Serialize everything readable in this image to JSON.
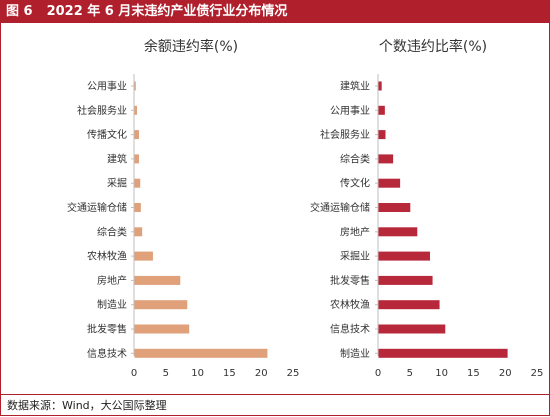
{
  "header": {
    "fig": "图 6",
    "title": "2022 年 6 月末违约产业债行业分布情况"
  },
  "footer": {
    "source": "数据来源：Wind，大公国际整理"
  },
  "chart_data": [
    {
      "type": "bar",
      "orientation": "horizontal",
      "title": "余额违约率(%)",
      "categories": [
        "公用事业",
        "社会服务业",
        "传播文化",
        "建筑",
        "采掘",
        "交通运输仓储",
        "综合类",
        "农林牧渔",
        "房地产",
        "制造业",
        "批发零售",
        "信息技术"
      ],
      "values": [
        0.2,
        0.4,
        0.7,
        0.7,
        0.9,
        1.0,
        1.2,
        2.9,
        7.2,
        8.3,
        8.6,
        20.9
      ],
      "xlim": [
        0,
        25
      ],
      "xticks": [
        0,
        5,
        10,
        15,
        20,
        25
      ],
      "grid": false,
      "color": "#e0a07a"
    },
    {
      "type": "bar",
      "orientation": "horizontal",
      "title": "个数违约比率(%)",
      "categories": [
        "建筑业",
        "公用事业",
        "社会服务业",
        "综合类",
        "传文化",
        "交通运输仓储",
        "房地产",
        "采掘业",
        "批发零售",
        "农林牧渔",
        "信息技术",
        "制造业"
      ],
      "values": [
        0.5,
        1.0,
        1.1,
        2.3,
        3.4,
        5.0,
        6.1,
        8.1,
        8.5,
        9.6,
        10.5,
        20.3
      ],
      "xlim": [
        0,
        25
      ],
      "xticks": [
        0,
        5,
        10,
        15,
        20,
        25
      ],
      "grid": false,
      "color": "#b8283b"
    }
  ]
}
